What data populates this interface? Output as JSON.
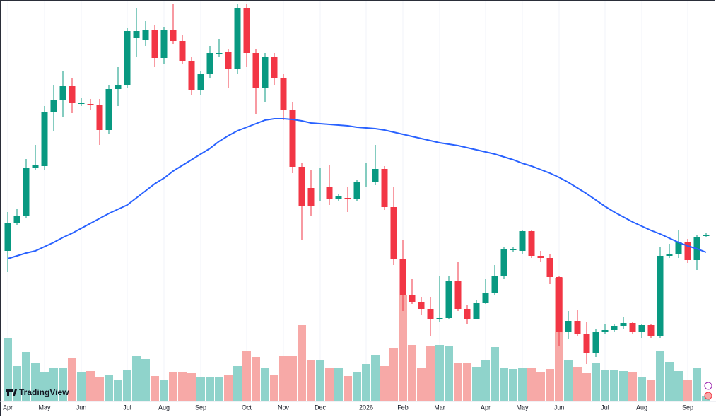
{
  "chart_data": {
    "type": "candlestick",
    "watermark": "TradingView",
    "up_color": "#089981",
    "down_color": "#f23645",
    "up_volume_color": "#8fd3cb",
    "down_volume_color": "#f7a9a7",
    "ylim": [
      0,
      570
    ],
    "y2lim": [
      0,
      567
    ],
    "categories": [
      null,
      null,
      null,
      null,
      null,
      null,
      null,
      null,
      null,
      null,
      null,
      null,
      null,
      null,
      null,
      null,
      null,
      null,
      null,
      null,
      null,
      null,
      null,
      null,
      null,
      null,
      null,
      null,
      null,
      null,
      null,
      null,
      null,
      null,
      null,
      null,
      null,
      null,
      null,
      null,
      null,
      null,
      null,
      null,
      null,
      null,
      null,
      null,
      null,
      null,
      null,
      null,
      null,
      null,
      null,
      null,
      null,
      null,
      null,
      null,
      null,
      null,
      null,
      null,
      null,
      null,
      null,
      null,
      null,
      null,
      null,
      null,
      null,
      null,
      null,
      null,
      null
    ],
    "xticks": [
      {
        "value": 0,
        "label": "Apr"
      },
      {
        "value": 4,
        "label": "May"
      },
      {
        "value": 8,
        "label": "Jun"
      },
      {
        "value": 13,
        "label": "Jul"
      },
      {
        "value": 17,
        "label": "Aug"
      },
      {
        "value": 21,
        "label": "Sep"
      },
      {
        "value": 26,
        "label": "Oct"
      },
      {
        "value": 30,
        "label": "Nov"
      },
      {
        "value": 34,
        "label": "Dec"
      },
      {
        "value": 39,
        "label": "2026"
      },
      {
        "value": 43,
        "label": "Feb"
      },
      {
        "value": 47,
        "label": "Mar"
      },
      {
        "value": 52,
        "label": "Apr"
      },
      {
        "value": 56,
        "label": "May"
      },
      {
        "value": 60,
        "label": "Jun"
      },
      {
        "value": 65,
        "label": "Jul"
      },
      {
        "value": 69,
        "label": "Aug"
      },
      {
        "value": 74,
        "label": "Sep"
      }
    ],
    "open": [
      215,
      254,
      265,
      332,
      335,
      412,
      429,
      448,
      423,
      423,
      422,
      386,
      444,
      450,
      516,
      513,
      528,
      488,
      528,
      512,
      483,
      442,
      465,
      494,
      496,
      472,
      558,
      495,
      446,
      490,
      460,
      415,
      334,
      304,
      305,
      306,
      288,
      290,
      288,
      312,
      313,
      331,
      277,
      203,
      153,
      143,
      133,
      119,
      120,
      172,
      133,
      119,
      142,
      156,
      180,
      216,
      215,
      243,
      208,
      205,
      178,
      100,
      116,
      98,
      70,
      100,
      103,
      109,
      113,
      100,
      110,
      95,
      208,
      210,
      228,
      202,
      236
    ],
    "high": [
      270,
      275,
      345,
      365,
      420,
      450,
      470,
      460,
      432,
      430,
      430,
      450,
      475,
      530,
      558,
      540,
      535,
      532,
      565,
      520,
      490,
      470,
      505,
      515,
      500,
      565,
      565,
      500,
      495,
      495,
      465,
      425,
      340,
      330,
      332,
      337,
      295,
      305,
      315,
      340,
      365,
      335,
      305,
      230,
      175,
      150,
      150,
      180,
      180,
      200,
      138,
      145,
      175,
      195,
      220,
      220,
      245,
      245,
      215,
      210,
      180,
      130,
      132,
      115,
      105,
      112,
      112,
      122,
      115,
      112,
      112,
      220,
      225,
      245,
      232,
      238,
      240
    ],
    "low": [
      185,
      252,
      262,
      330,
      330,
      385,
      405,
      410,
      420,
      415,
      365,
      380,
      420,
      445,
      490,
      505,
      475,
      480,
      508,
      480,
      435,
      435,
      460,
      490,
      445,
      465,
      475,
      408,
      425,
      450,
      400,
      325,
      230,
      265,
      285,
      280,
      285,
      270,
      285,
      305,
      308,
      273,
      195,
      130,
      140,
      125,
      95,
      115,
      118,
      130,
      112,
      118,
      140,
      152,
      175,
      214,
      210,
      205,
      200,
      168,
      80,
      90,
      95,
      55,
      65,
      98,
      100,
      105,
      98,
      92,
      92,
      92,
      205,
      205,
      198,
      188,
      234
    ],
    "close": [
      254,
      265,
      332,
      337,
      412,
      429,
      448,
      424,
      424,
      422,
      386,
      444,
      450,
      526,
      526,
      528,
      488,
      528,
      512,
      483,
      442,
      465,
      495,
      495,
      472,
      558,
      495,
      446,
      490,
      460,
      415,
      334,
      278,
      278,
      306,
      288,
      292,
      288,
      313,
      313,
      331,
      277,
      203,
      153,
      143,
      133,
      119,
      120,
      172,
      133,
      119,
      142,
      156,
      180,
      217,
      217,
      243,
      208,
      205,
      178,
      100,
      116,
      98,
      70,
      100,
      103,
      109,
      113,
      100,
      110,
      95,
      208,
      210,
      228,
      202,
      234,
      237
    ],
    "volume": [
      89,
      49,
      69,
      54,
      40,
      47,
      47,
      60,
      40,
      42,
      34,
      37,
      29,
      44,
      64,
      59,
      35,
      29,
      40,
      41,
      39,
      33,
      33,
      34,
      36,
      49,
      70,
      62,
      46,
      36,
      63,
      63,
      107,
      58,
      58,
      46,
      47,
      35,
      41,
      52,
      65,
      49,
      75,
      149,
      79,
      47,
      78,
      79,
      77,
      53,
      53,
      48,
      57,
      76,
      47,
      45,
      46,
      46,
      40,
      45,
      173,
      57,
      48,
      39,
      54,
      44,
      43,
      42,
      40,
      34,
      29,
      70,
      55,
      42,
      29,
      47,
      7
    ],
    "ma": {
      "color": "#2962ff",
      "values": [
        204,
        208,
        212,
        215,
        221,
        227,
        234,
        240,
        247,
        254,
        261,
        268,
        274,
        280,
        290,
        300,
        310,
        318,
        328,
        336,
        344,
        352,
        360,
        370,
        378,
        385,
        390,
        395,
        400,
        402,
        402,
        401,
        399,
        396,
        395,
        394,
        393,
        392,
        390,
        389,
        388,
        386,
        383,
        380,
        377,
        374,
        371,
        368,
        366,
        364,
        361,
        358,
        355,
        352,
        348,
        344,
        339,
        335,
        330,
        325,
        319,
        312,
        304,
        296,
        287,
        278,
        270,
        263,
        256,
        250,
        244,
        239,
        233,
        227,
        222,
        218,
        213
      ]
    }
  }
}
